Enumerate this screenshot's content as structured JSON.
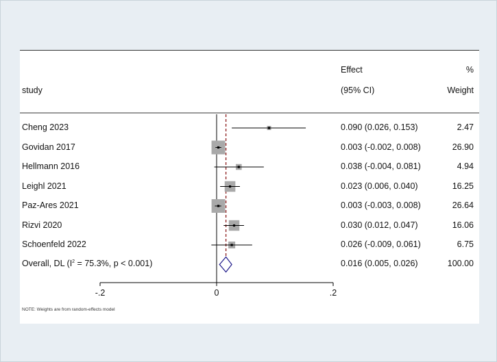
{
  "chart_data": {
    "type": "forest",
    "headers": {
      "study": "study",
      "effect_line1": "Effect",
      "effect_line2": "(95% CI)",
      "weight_line1": "%",
      "weight_line2": "Weight"
    },
    "studies": [
      {
        "label": "Cheng 2023",
        "effect": 0.09,
        "lower": 0.026,
        "upper": 0.153,
        "ci_text": "0.090 (0.026, 0.153)",
        "weight": 2.47,
        "weight_text": "2.47"
      },
      {
        "label": "Govidan 2017",
        "effect": 0.003,
        "lower": -0.002,
        "upper": 0.008,
        "ci_text": "0.003 (-0.002, 0.008)",
        "weight": 26.9,
        "weight_text": "26.90"
      },
      {
        "label": "Hellmann 2016",
        "effect": 0.038,
        "lower": -0.004,
        "upper": 0.081,
        "ci_text": "0.038 (-0.004, 0.081)",
        "weight": 4.94,
        "weight_text": "4.94"
      },
      {
        "label": "Leighl 2021",
        "effect": 0.023,
        "lower": 0.006,
        "upper": 0.04,
        "ci_text": "0.023 (0.006, 0.040)",
        "weight": 16.25,
        "weight_text": "16.25"
      },
      {
        "label": "Paz-Ares 2021",
        "effect": 0.003,
        "lower": -0.003,
        "upper": 0.008,
        "ci_text": "0.003 (-0.003, 0.008)",
        "weight": 26.64,
        "weight_text": "26.64"
      },
      {
        "label": "Rizvi 2020",
        "effect": 0.03,
        "lower": 0.012,
        "upper": 0.047,
        "ci_text": "0.030 (0.012, 0.047)",
        "weight": 16.06,
        "weight_text": "16.06"
      },
      {
        "label": "Schoenfeld 2022",
        "effect": 0.026,
        "lower": -0.009,
        "upper": 0.061,
        "ci_text": "0.026 (-0.009, 0.061)",
        "weight": 6.75,
        "weight_text": "6.75"
      }
    ],
    "overall": {
      "label_prefix": "Overall, DL (I",
      "label_sup": "2",
      "label_suffix": " = 75.3%, p < 0.001)",
      "effect": 0.016,
      "lower": 0.005,
      "upper": 0.026,
      "ci_text": "0.016 (0.005, 0.026)",
      "weight_text": "100.00"
    },
    "x_axis": {
      "ticks": [
        -0.2,
        0,
        0.2
      ],
      "tick_labels": [
        "-.2",
        "0",
        ".2"
      ],
      "xlim": [
        -0.2,
        0.2
      ]
    },
    "null_line": 0,
    "overall_line": 0.016,
    "colors": {
      "box": "#a9a9a9",
      "line": "#000000",
      "overall_line": "#8b1a1a",
      "diamond": "#1f1a8a",
      "rule": "#333333"
    },
    "note": "NOTE: Weights are from random-effects model"
  }
}
